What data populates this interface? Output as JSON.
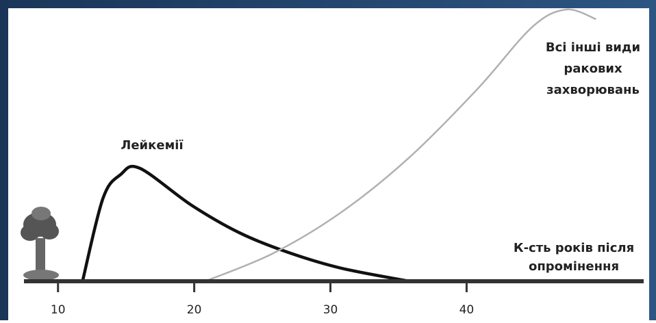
{
  "chart_data": {
    "type": "line",
    "xlim": [
      7.5,
      53
    ],
    "xticks": [
      10,
      20,
      30,
      40
    ],
    "ylim": [
      0,
      100
    ],
    "xlabel": [
      "К-сть років після",
      "опромінення"
    ],
    "series": [
      {
        "label": [
          "Лейкемії"
        ],
        "color": "#111111",
        "x": [
          11.8,
          13.3,
          14.6,
          16,
          19.8,
          23.3,
          26.8,
          30.8,
          35.8
        ],
        "y": [
          0,
          30.5,
          39.3,
          41.6,
          28,
          17.9,
          10.8,
          4.8,
          0
        ]
      },
      {
        "label": [
          "Всі інші види",
          "ракових",
          "захворювань"
        ],
        "color": "#b0b0b0",
        "x": [
          20.8,
          25.8,
          30.8,
          35.8,
          40.8,
          44.8,
          47.3,
          49.5
        ],
        "y": [
          0,
          10.3,
          25.4,
          45.6,
          70.8,
          93.5,
          100,
          96.5
        ]
      }
    ]
  }
}
